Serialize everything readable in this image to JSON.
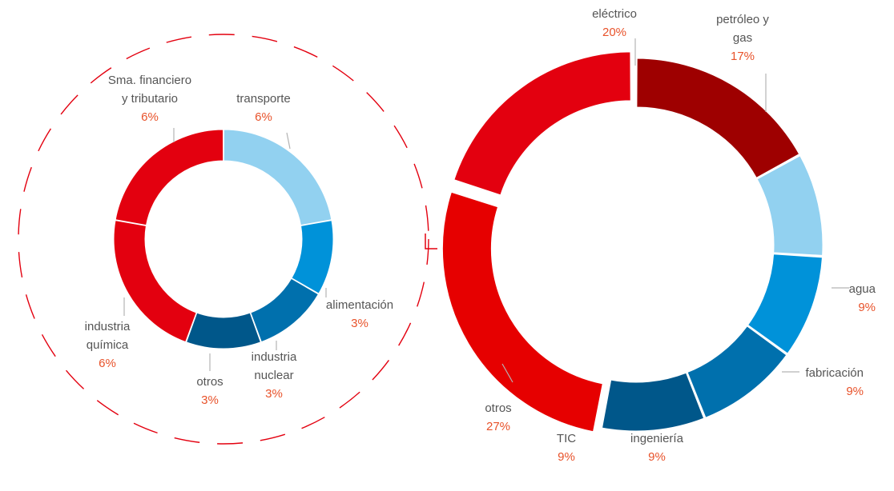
{
  "chart_data": [
    {
      "type": "pie",
      "variant": "donut",
      "start": "top",
      "direction": "clockwise",
      "slices": [
        {
          "label": [
            "transporte"
          ],
          "value": 6,
          "value_label": "6%",
          "color": "#92d1f0"
        },
        {
          "label": [
            "alimentación"
          ],
          "value": 3,
          "value_label": "3%",
          "color": "#0092d9"
        },
        {
          "label": [
            "industria",
            "nuclear"
          ],
          "value": 3,
          "value_label": "3%",
          "color": "#0070ad"
        },
        {
          "label": [
            "otros"
          ],
          "value": 3,
          "value_label": "3%",
          "color": "#00578a"
        },
        {
          "label": [
            "industria",
            "química"
          ],
          "value": 6,
          "value_label": "6%",
          "color": "#e3000f"
        },
        {
          "label": [
            "Sma. financiero",
            "y tributario"
          ],
          "value": 6,
          "value_label": "6%",
          "color": "#e3000f"
        }
      ]
    },
    {
      "type": "pie",
      "variant": "donut",
      "start": "top",
      "direction": "clockwise",
      "exploded": [
        "otros",
        "eléctrico"
      ],
      "slices": [
        {
          "label": [
            "petróleo y",
            "gas"
          ],
          "value": 17,
          "value_label": "17%",
          "color": "#9e0000"
        },
        {
          "label": [
            "agua"
          ],
          "value": 9,
          "value_label": "9%",
          "color": "#92d1f0"
        },
        {
          "label": [
            "fabricación"
          ],
          "value": 9,
          "value_label": "9%",
          "color": "#0092d9"
        },
        {
          "label": [
            "ingeniería"
          ],
          "value": 9,
          "value_label": "9%",
          "color": "#0070ad"
        },
        {
          "label": [
            "TIC"
          ],
          "value": 9,
          "value_label": "9%",
          "color": "#00578a"
        },
        {
          "label": [
            "otros"
          ],
          "value": 27,
          "value_label": "27%",
          "color": "#e60000"
        },
        {
          "label": [
            "eléctrico"
          ],
          "value": 20,
          "value_label": "20%",
          "color": "#e3000f"
        }
      ]
    }
  ],
  "colors": {
    "label_text": "#555555",
    "value_text": "#e8522a",
    "leader_line": "#b3b3b3",
    "dashed_circle": "#e3000f"
  }
}
